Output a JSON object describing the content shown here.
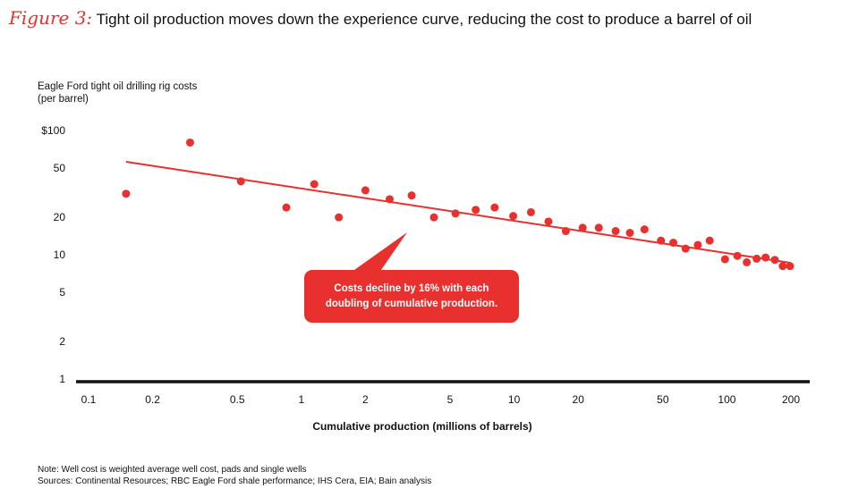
{
  "title": {
    "figure_label": "Figure 3:",
    "text": "Tight oil production moves down the experience curve, reducing the cost to produce a barrel of oil"
  },
  "colors": {
    "accent": "#e8312f",
    "axis": "#111111",
    "text": "#111111"
  },
  "chart_data": {
    "type": "scatter",
    "ylabel_line1": "Eagle Ford tight oil drilling rig costs",
    "ylabel_line2": "(per barrel)",
    "xlabel": "Cumulative production (millions of barrels)",
    "xscale": "log",
    "yscale": "log",
    "xlim": [
      0.1,
      200
    ],
    "ylim": [
      1,
      100
    ],
    "x_ticks": [
      0.1,
      0.2,
      0.5,
      1,
      2,
      5,
      10,
      20,
      50,
      100,
      200
    ],
    "x_tick_labels": [
      "0.1",
      "0.2",
      "0.5",
      "1",
      "2",
      "5",
      "10",
      "20",
      "50",
      "100",
      "200"
    ],
    "y_ticks": [
      1,
      2,
      5,
      10,
      20,
      50,
      100
    ],
    "y_tick_labels": [
      "1",
      "2",
      "5",
      "10",
      "20",
      "50",
      "$100"
    ],
    "grid": false,
    "legend": "none",
    "points": [
      {
        "x": 0.15,
        "y": 31
      },
      {
        "x": 0.3,
        "y": 80
      },
      {
        "x": 0.52,
        "y": 39
      },
      {
        "x": 0.85,
        "y": 24
      },
      {
        "x": 1.15,
        "y": 37
      },
      {
        "x": 1.5,
        "y": 20
      },
      {
        "x": 2.0,
        "y": 33
      },
      {
        "x": 2.6,
        "y": 28
      },
      {
        "x": 3.3,
        "y": 30
      },
      {
        "x": 4.2,
        "y": 20
      },
      {
        "x": 5.3,
        "y": 21.5
      },
      {
        "x": 6.6,
        "y": 23
      },
      {
        "x": 8.1,
        "y": 24
      },
      {
        "x": 9.9,
        "y": 20.5
      },
      {
        "x": 12,
        "y": 22
      },
      {
        "x": 14.5,
        "y": 18.5
      },
      {
        "x": 17.5,
        "y": 15.5
      },
      {
        "x": 21,
        "y": 16.5
      },
      {
        "x": 25,
        "y": 16.5
      },
      {
        "x": 30,
        "y": 15.5
      },
      {
        "x": 35,
        "y": 15
      },
      {
        "x": 41,
        "y": 16
      },
      {
        "x": 49,
        "y": 13
      },
      {
        "x": 56,
        "y": 12.5
      },
      {
        "x": 64,
        "y": 11.2
      },
      {
        "x": 73,
        "y": 12
      },
      {
        "x": 83,
        "y": 13
      },
      {
        "x": 98,
        "y": 9.2
      },
      {
        "x": 112,
        "y": 9.8
      },
      {
        "x": 124,
        "y": 8.7
      },
      {
        "x": 138,
        "y": 9.3
      },
      {
        "x": 152,
        "y": 9.5
      },
      {
        "x": 168,
        "y": 9.1
      },
      {
        "x": 183,
        "y": 8.1
      },
      {
        "x": 198,
        "y": 8.1
      }
    ],
    "trendline": {
      "x": [
        0.15,
        200
      ],
      "y": [
        56,
        8.6
      ]
    },
    "annotation": {
      "line1": "Costs decline by 16% with each",
      "line2": "doubling of cumulative production."
    }
  },
  "notes": {
    "note": "Note: Well cost is weighted average well cost, pads and single wells",
    "sources": "Sources: Continental Resources; RBC Eagle Ford shale performance; IHS Cera, EIA; Bain analysis"
  }
}
